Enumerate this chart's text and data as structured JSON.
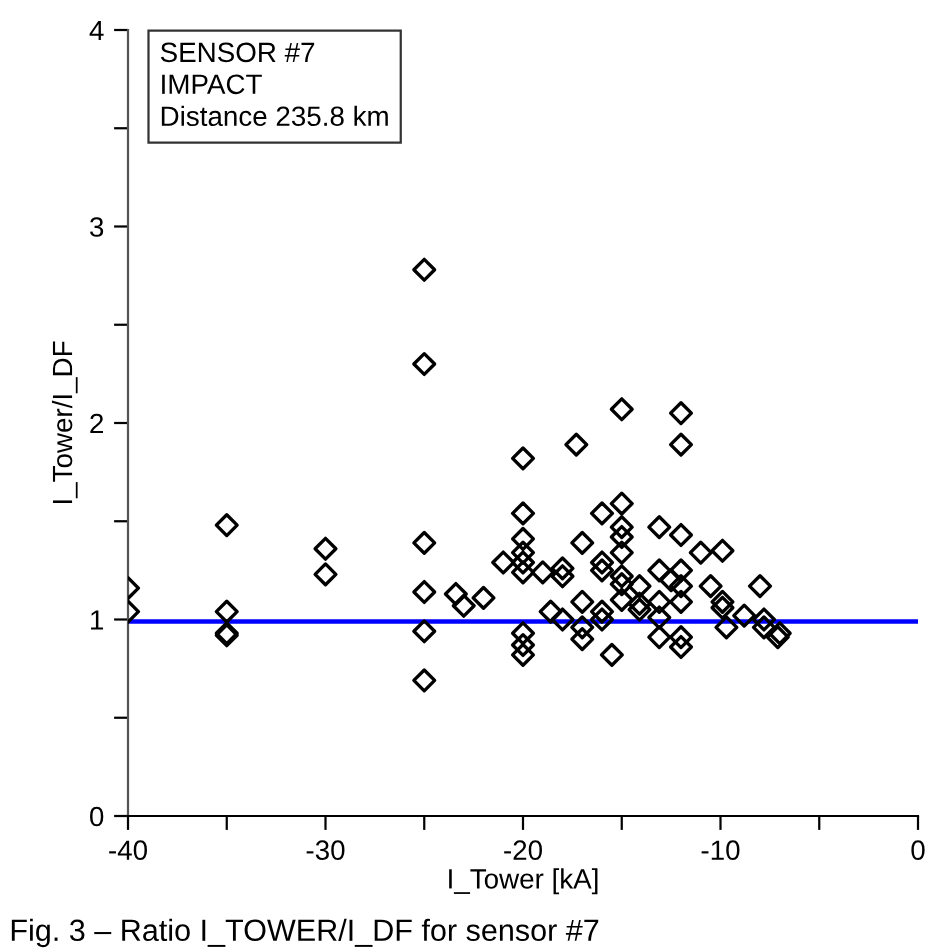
{
  "chart_data": {
    "type": "scatter",
    "xlabel": "I_Tower [kA]",
    "ylabel": "I_Tower/I_DF",
    "annotations": [
      "SENSOR #7\nIMPACT\nDistance 235.8 km",
      "Fig. 3 – Ratio I_TOWER/I_DF for sensor #7"
    ],
    "xlim": [
      -40,
      0
    ],
    "ylim": [
      0,
      4
    ],
    "xticks": [
      -40,
      {
        "value": -35,
        "label": null
      },
      -30,
      {
        "value": -25,
        "label": null
      },
      -20,
      {
        "value": -15,
        "label": null
      },
      -10,
      {
        "value": -5,
        "label": null
      },
      0
    ],
    "yticks": [
      0,
      {
        "value": 0.5,
        "label": null
      },
      1,
      {
        "value": 1.5,
        "label": null
      },
      2,
      {
        "value": 2.5,
        "label": null
      },
      3,
      {
        "value": 3.5,
        "label": null
      },
      4
    ],
    "grid": false,
    "marker": "diamond",
    "ref_lines": [
      {
        "axis": "y",
        "value": 0.99,
        "label": null,
        "color": "#0000ff"
      }
    ],
    "series": [
      {
        "color": "#000000",
        "x": [
          -25,
          -25,
          -35,
          -30,
          -30,
          -25,
          -40,
          -40,
          -35,
          -35,
          -35,
          -25,
          -25,
          -25,
          -23.4,
          -23,
          -22,
          -21,
          -20,
          -20,
          -20,
          -20,
          -20,
          -20,
          -20,
          -20,
          -20,
          -19,
          -18.6,
          -18,
          -18,
          -18,
          -17.3,
          -17,
          -17,
          -17,
          -17,
          -16,
          -16,
          -16,
          -16,
          -16,
          -15.5,
          -15,
          -15,
          -15,
          -15,
          -15,
          -15,
          -15,
          -15,
          -14.1,
          -14.1,
          -14.1,
          -13.1,
          -13.1,
          -13.1,
          -13.1,
          -13.1,
          -12.5,
          -12,
          -12,
          -12,
          -12,
          -12,
          -12,
          -12,
          -12,
          -11,
          -10.5,
          -9.9,
          -9.9,
          -9.9,
          -9.7,
          -8.8,
          -8,
          -7.8,
          -7.8,
          -7.1,
          -7
        ],
        "values": [
          2.78,
          2.3,
          1.48,
          1.36,
          1.23,
          1.39,
          1.16,
          1.04,
          1.04,
          0.93,
          0.92,
          1.14,
          0.94,
          0.69,
          1.13,
          1.07,
          1.11,
          1.29,
          1.82,
          1.54,
          1.41,
          1.34,
          1.29,
          1.24,
          0.93,
          0.87,
          0.82,
          1.24,
          1.04,
          1.26,
          1.22,
          1.0,
          1.89,
          1.39,
          1.09,
          0.96,
          0.9,
          1.54,
          1.29,
          1.25,
          1.04,
          1.0,
          0.82,
          2.07,
          1.59,
          1.47,
          1.42,
          1.34,
          1.22,
          1.18,
          1.1,
          1.17,
          1.08,
          1.05,
          1.47,
          1.25,
          1.09,
          1.01,
          0.91,
          1.2,
          2.05,
          1.89,
          1.43,
          1.25,
          1.17,
          1.09,
          0.91,
          0.86,
          1.34,
          1.17,
          1.35,
          1.09,
          1.06,
          0.96,
          1.02,
          1.17,
          1.0,
          0.96,
          0.91,
          0.93
        ]
      }
    ]
  }
}
